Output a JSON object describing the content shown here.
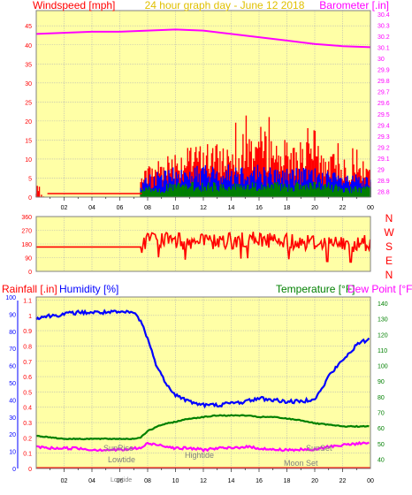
{
  "header": {
    "title": "24 hour graph day - June 12 2018",
    "left_label": "Windspeed [mph]",
    "right_label": "Barometer [.in]"
  },
  "wind_direction_labels": [
    "N",
    "W",
    "S",
    "E",
    "N"
  ],
  "bottom_header": {
    "rainfall_label": "Rainfall [.in]",
    "humidity_label": "Humidity [%]",
    "temperature_label": "Temperature [°F]",
    "dewpoint_label": "Dew Point [°F]"
  },
  "annotations": {
    "sunrise": "SunRise",
    "lowtide": "Lowtide",
    "hightide": "Hightide",
    "sunset": "SunSet",
    "moonset": "Moon Set",
    "lowtide_axis": "Lowtide"
  },
  "colors": {
    "background": "#ffffa6",
    "frame": "#808080",
    "grid": "#b4b4b4",
    "wind_speed": "#ff0000",
    "wind_gust_mid": "#0000ff",
    "wind_low": "#008000",
    "barometer": "#ff00ff",
    "wind_direction": "#ff0000",
    "humidity": "#0000ff",
    "temperature": "#008000",
    "dew_point": "#ff00ff",
    "title": "#e0c000"
  },
  "chart_data": [
    {
      "type": "line",
      "name": "wind-barometer",
      "x_ticks": [
        "02",
        "04",
        "06",
        "08",
        "10",
        "12",
        "14",
        "16",
        "18",
        "20",
        "22",
        "00"
      ],
      "y_left_ticks": [
        "45",
        "40",
        "35",
        "30",
        "25",
        "20",
        "15",
        "10",
        "5",
        "0"
      ],
      "y_right_ticks": [
        "30.4",
        "30.3",
        "30.2",
        "30.1",
        "30",
        "29.9",
        "29.8",
        "29.7",
        "29.6",
        "29.5",
        "29.4",
        "29.3",
        "29.2",
        "29.1",
        "29",
        "28.9",
        "28.8"
      ],
      "y_left_range": [
        0,
        49
      ],
      "y_right_range": [
        28.75,
        30.43
      ],
      "x_range_hours": [
        0,
        24
      ],
      "series": [
        {
          "name": "Barometer",
          "axis": "right",
          "x": [
            0,
            2,
            4,
            6,
            8,
            10,
            12,
            14,
            16,
            18,
            20,
            22,
            24
          ],
          "values": [
            30.22,
            30.23,
            30.24,
            30.24,
            30.25,
            30.26,
            30.25,
            30.22,
            30.19,
            30.16,
            30.13,
            30.11,
            30.1
          ]
        }
      ],
      "wind_speed_envelope": {
        "x": [
          0,
          7.5,
          8,
          9,
          10,
          11,
          12,
          13,
          14,
          15,
          16,
          17,
          18,
          19,
          20,
          21,
          22,
          23,
          24
        ],
        "low_max": [
          1,
          2,
          3,
          3,
          4,
          4,
          4,
          4,
          4,
          4,
          4,
          4,
          4,
          4,
          4,
          4,
          3,
          3,
          3
        ],
        "mid_max": [
          1,
          4,
          6,
          7,
          8,
          8,
          9,
          8,
          9,
          9,
          9,
          8,
          8,
          8,
          8,
          7,
          6,
          6,
          5
        ],
        "high_max": [
          3,
          5,
          9,
          11,
          13,
          13,
          15,
          14,
          15,
          17,
          19,
          16,
          15,
          15,
          14,
          12,
          11,
          10,
          9
        ]
      }
    },
    {
      "type": "line",
      "name": "wind-direction",
      "x_range_hours": [
        0,
        24
      ],
      "y_ticks": [
        "360",
        "270",
        "180",
        "90",
        "0"
      ],
      "y_range": [
        0,
        360
      ],
      "series": [
        {
          "name": "Wind direction",
          "x": [
            0,
            7.5,
            8,
            10,
            12,
            14,
            16,
            18,
            20,
            22,
            24
          ],
          "values": [
            160,
            160,
            220,
            200,
            190,
            200,
            210,
            200,
            190,
            180,
            185
          ]
        }
      ]
    },
    {
      "type": "line",
      "name": "humidity-temperature",
      "x_ticks": [
        "02",
        "04",
        "06",
        "08",
        "10",
        "12",
        "14",
        "16",
        "18",
        "20",
        "22",
        "00"
      ],
      "y_left_rain_ticks": [
        "1.1",
        "1",
        "0.9",
        "0.8",
        "0.7",
        "0.6",
        "0.5",
        "0.4",
        "0.3",
        "0.2",
        "0.1",
        "0"
      ],
      "y_left_humidity_ticks": [
        "100",
        "90",
        "80",
        "70",
        "60",
        "50",
        "40",
        "30",
        "20",
        "10",
        "0"
      ],
      "y_right_ticks": [
        "140",
        "130",
        "120",
        "110",
        "100",
        "90",
        "80",
        "70",
        "60",
        "50",
        "40"
      ],
      "rain_range": [
        0,
        1.12
      ],
      "humidity_range": [
        0,
        100
      ],
      "temperature_range": [
        34,
        144
      ],
      "x_range_hours": [
        0,
        24
      ],
      "series": [
        {
          "name": "Humidity",
          "axis": "humidity",
          "x": [
            0,
            1,
            2,
            3,
            4,
            5,
            6,
            7,
            7.5,
            8,
            8.5,
            9,
            9.5,
            10,
            11,
            12,
            13,
            14,
            15,
            16,
            17,
            18,
            19,
            20,
            20.5,
            21,
            22,
            23,
            24
          ],
          "values": [
            88,
            89,
            90,
            91,
            91,
            91,
            91,
            91,
            86,
            76,
            63,
            54,
            48,
            43,
            39,
            37,
            37,
            38,
            39,
            41,
            40,
            39,
            39,
            41,
            46,
            54,
            63,
            72,
            76
          ]
        },
        {
          "name": "Temperature",
          "axis": "temperature",
          "x": [
            0,
            1,
            2,
            3,
            4,
            5,
            6,
            6.5,
            7,
            7.5,
            8,
            9,
            10,
            11,
            12,
            13,
            14,
            15,
            16,
            17,
            18,
            19,
            20,
            21,
            22,
            23,
            24
          ],
          "values": [
            55,
            54,
            53,
            53,
            53,
            53,
            53,
            53,
            53,
            54,
            58,
            62,
            64,
            66,
            67,
            68,
            68,
            68,
            67,
            67,
            66,
            65,
            63,
            62,
            61,
            61,
            61
          ]
        },
        {
          "name": "Dew Point",
          "axis": "temperature",
          "x": [
            0,
            1,
            2,
            3,
            4,
            5,
            6,
            6.5,
            7,
            7.5,
            8,
            9,
            10,
            11,
            12,
            13,
            14,
            15,
            16,
            17,
            18,
            19,
            20,
            21,
            22,
            23,
            24
          ],
          "values": [
            48,
            47,
            47,
            47,
            46,
            46,
            46,
            46,
            47,
            47,
            50,
            49,
            47,
            47,
            46,
            47,
            47,
            48,
            47,
            46,
            46,
            46,
            46,
            48,
            49,
            50,
            50
          ]
        }
      ]
    }
  ]
}
